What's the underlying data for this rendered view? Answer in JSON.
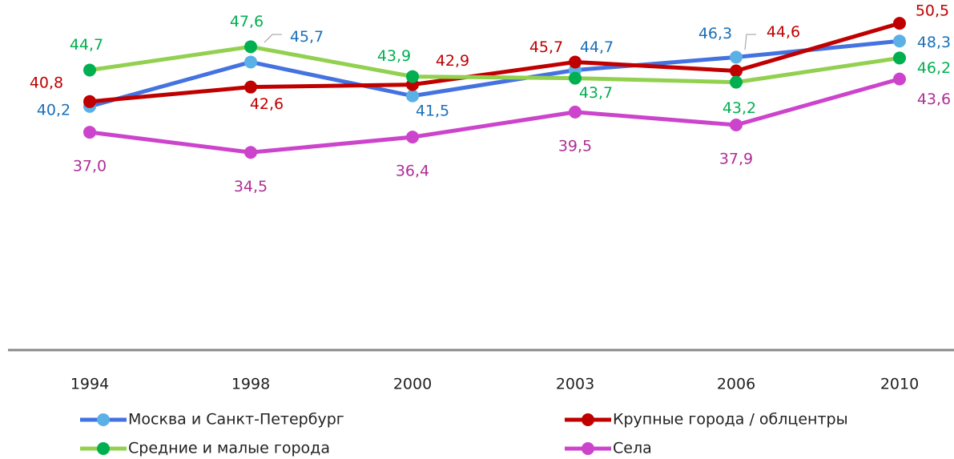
{
  "chart_data": {
    "type": "line",
    "categories": [
      "1994",
      "1998",
      "2000",
      "2003",
      "2006",
      "2010"
    ],
    "ylim": [
      10,
      52
    ],
    "series": [
      {
        "name": "Москва и Санкт-Петербург",
        "color": "#4472e0",
        "marker_color": "#5bb0e6",
        "label_color": "#1b6fb8",
        "values": [
          40.2,
          45.7,
          41.5,
          44.7,
          46.3,
          48.3
        ],
        "value_labels": [
          "40,2",
          "45,7",
          "41,5",
          "44,7",
          "46,3",
          "48,3"
        ]
      },
      {
        "name": "Крупные города / облцентры",
        "color": "#c00000",
        "marker_color": "#c00000",
        "label_color": "#c00000",
        "values": [
          40.8,
          42.6,
          42.9,
          45.7,
          44.6,
          50.5
        ],
        "value_labels": [
          "40,8",
          "42,6",
          "42,9",
          "45,7",
          "44,6",
          "50,5"
        ]
      },
      {
        "name": "Средние  и малые города",
        "color": "#92d050",
        "marker_color": "#00b050",
        "label_color": "#00b050",
        "values": [
          44.7,
          47.6,
          43.9,
          43.7,
          43.2,
          46.2
        ],
        "value_labels": [
          "44,7",
          "47,6",
          "43,9",
          "43,7",
          "43,2",
          "46,2"
        ]
      },
      {
        "name": "Села",
        "color": "#cc44cc",
        "marker_color": "#cc44cc",
        "label_color": "#b02e96",
        "values": [
          37.0,
          34.5,
          36.4,
          39.5,
          37.9,
          43.6
        ],
        "value_labels": [
          "37,0",
          "34,5",
          "36,4",
          "39,5",
          "37,9",
          "43,6"
        ]
      }
    ]
  }
}
